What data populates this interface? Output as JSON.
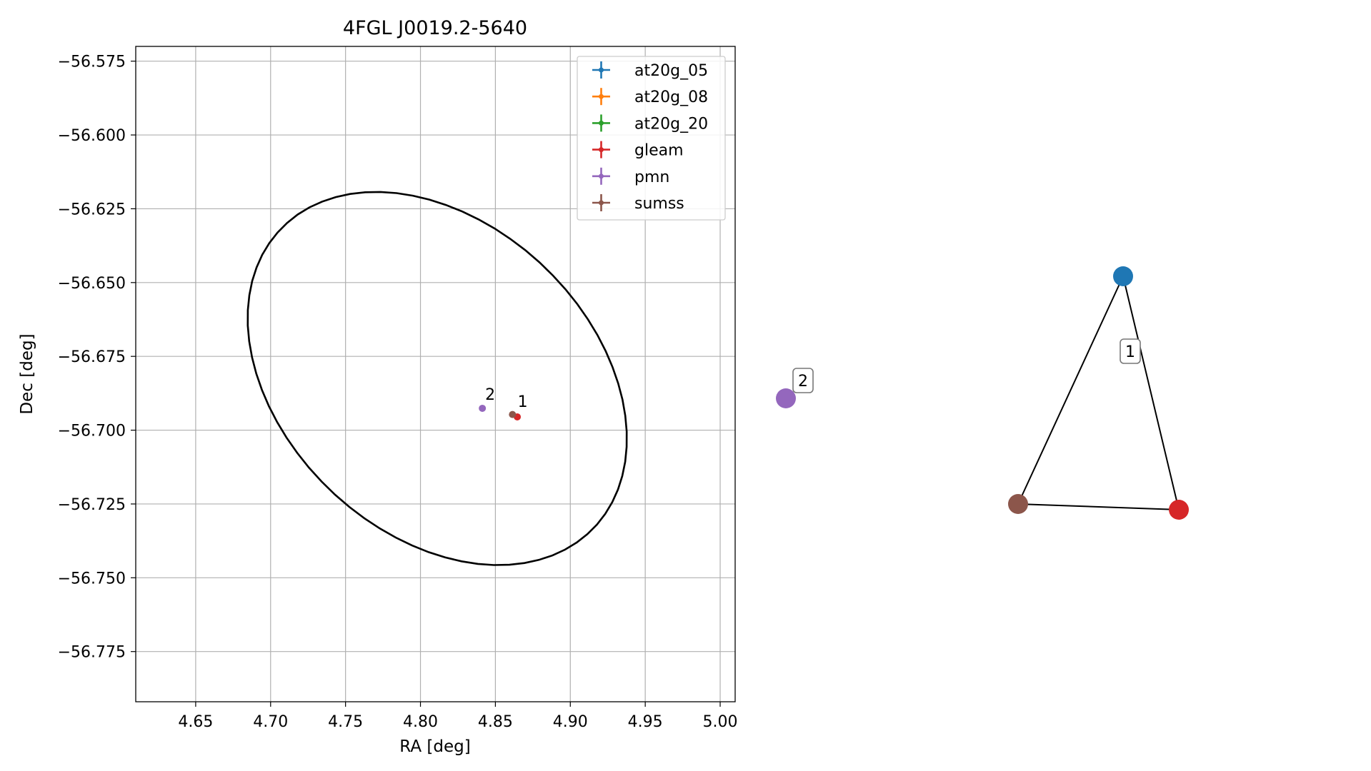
{
  "figure": {
    "title": "4FGL J0019.2-5640"
  },
  "chart_data": [
    {
      "type": "scatter",
      "title": "4FGL J0019.2-5640",
      "xlabel": "RA [deg]",
      "ylabel": "Dec [deg]",
      "xlim": [
        4.61,
        5.01
      ],
      "ylim": [
        -56.792,
        -56.57
      ],
      "x_ticks": [
        4.65,
        4.7,
        4.75,
        4.8,
        4.85,
        4.9,
        4.95,
        5.0
      ],
      "x_tick_labels": [
        "4.65",
        "4.70",
        "4.75",
        "4.80",
        "4.85",
        "4.90",
        "4.95",
        "5.00"
      ],
      "y_ticks": [
        -56.575,
        -56.6,
        -56.625,
        -56.65,
        -56.675,
        -56.7,
        -56.725,
        -56.75,
        -56.775
      ],
      "y_tick_labels": [
        "−56.575",
        "−56.600",
        "−56.625",
        "−56.650",
        "−56.675",
        "−56.700",
        "−56.725",
        "−56.750",
        "−56.775"
      ],
      "grid": true,
      "legend_position": "top-right",
      "series": [
        {
          "name": "at20g_05",
          "color": "#1f77b4",
          "points": []
        },
        {
          "name": "at20g_08",
          "color": "#ff7f0e",
          "points": []
        },
        {
          "name": "at20g_20",
          "color": "#2ca02c",
          "points": []
        },
        {
          "name": "gleam",
          "color": "#d62728",
          "points": [
            {
              "x": 4.8646,
              "y": -56.6955
            }
          ]
        },
        {
          "name": "pmn",
          "color": "#9467bd",
          "points": [
            {
              "x": 4.8413,
              "y": -56.6926
            }
          ]
        },
        {
          "name": "sumss",
          "color": "#8c564b",
          "points": [
            {
              "x": 4.8614,
              "y": -56.6947
            }
          ]
        }
      ],
      "annotations": [
        {
          "text": "2",
          "x": 4.8413,
          "y": -56.6926
        },
        {
          "text": "1",
          "x": 4.863,
          "y": -56.695
        }
      ],
      "ellipse": {
        "color": "#000000",
        "center_x": 4.8112,
        "center_y": -56.6825,
        "semi_x_a": 0.1206,
        "semi_y_a": -0.0376,
        "semi_x_b": 0.0383,
        "semi_y_b": 0.0508
      }
    },
    {
      "type": "network",
      "nodes": [
        {
          "id": "at20g_05",
          "color": "#1f77b4"
        },
        {
          "id": "gleam",
          "color": "#d62728"
        },
        {
          "id": "sumss",
          "color": "#8c564b"
        },
        {
          "id": "pmn",
          "color": "#9467bd"
        }
      ],
      "edges": [
        [
          "at20g_05",
          "gleam"
        ],
        [
          "at20g_05",
          "sumss"
        ],
        [
          "sumss",
          "gleam"
        ]
      ],
      "labels": [
        {
          "text": "1",
          "near": "at20g_05"
        },
        {
          "text": "2",
          "near": "pmn"
        }
      ]
    }
  ]
}
